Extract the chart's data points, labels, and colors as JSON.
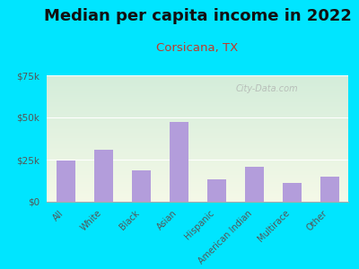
{
  "title": "Median per capita income in 2022",
  "subtitle": "Corsicana, TX",
  "categories": [
    "All",
    "White",
    "Black",
    "Asian",
    "Hispanic",
    "American Indian",
    "Multirace",
    "Other"
  ],
  "values": [
    24500,
    31000,
    18500,
    47500,
    13500,
    21000,
    11000,
    15000
  ],
  "bar_color": "#b39ddb",
  "title_fontsize": 13,
  "subtitle_fontsize": 9.5,
  "subtitle_color": "#c0392b",
  "title_color": "#111111",
  "background_color": "#00e5ff",
  "plot_bg_top": "#d4edda",
  "plot_bg_bottom": "#f5f9e8",
  "ylim": [
    0,
    75000
  ],
  "yticks": [
    0,
    25000,
    50000,
    75000
  ],
  "ytick_labels": [
    "$0",
    "$25k",
    "$50k",
    "$75k"
  ],
  "watermark": "City-Data.com"
}
